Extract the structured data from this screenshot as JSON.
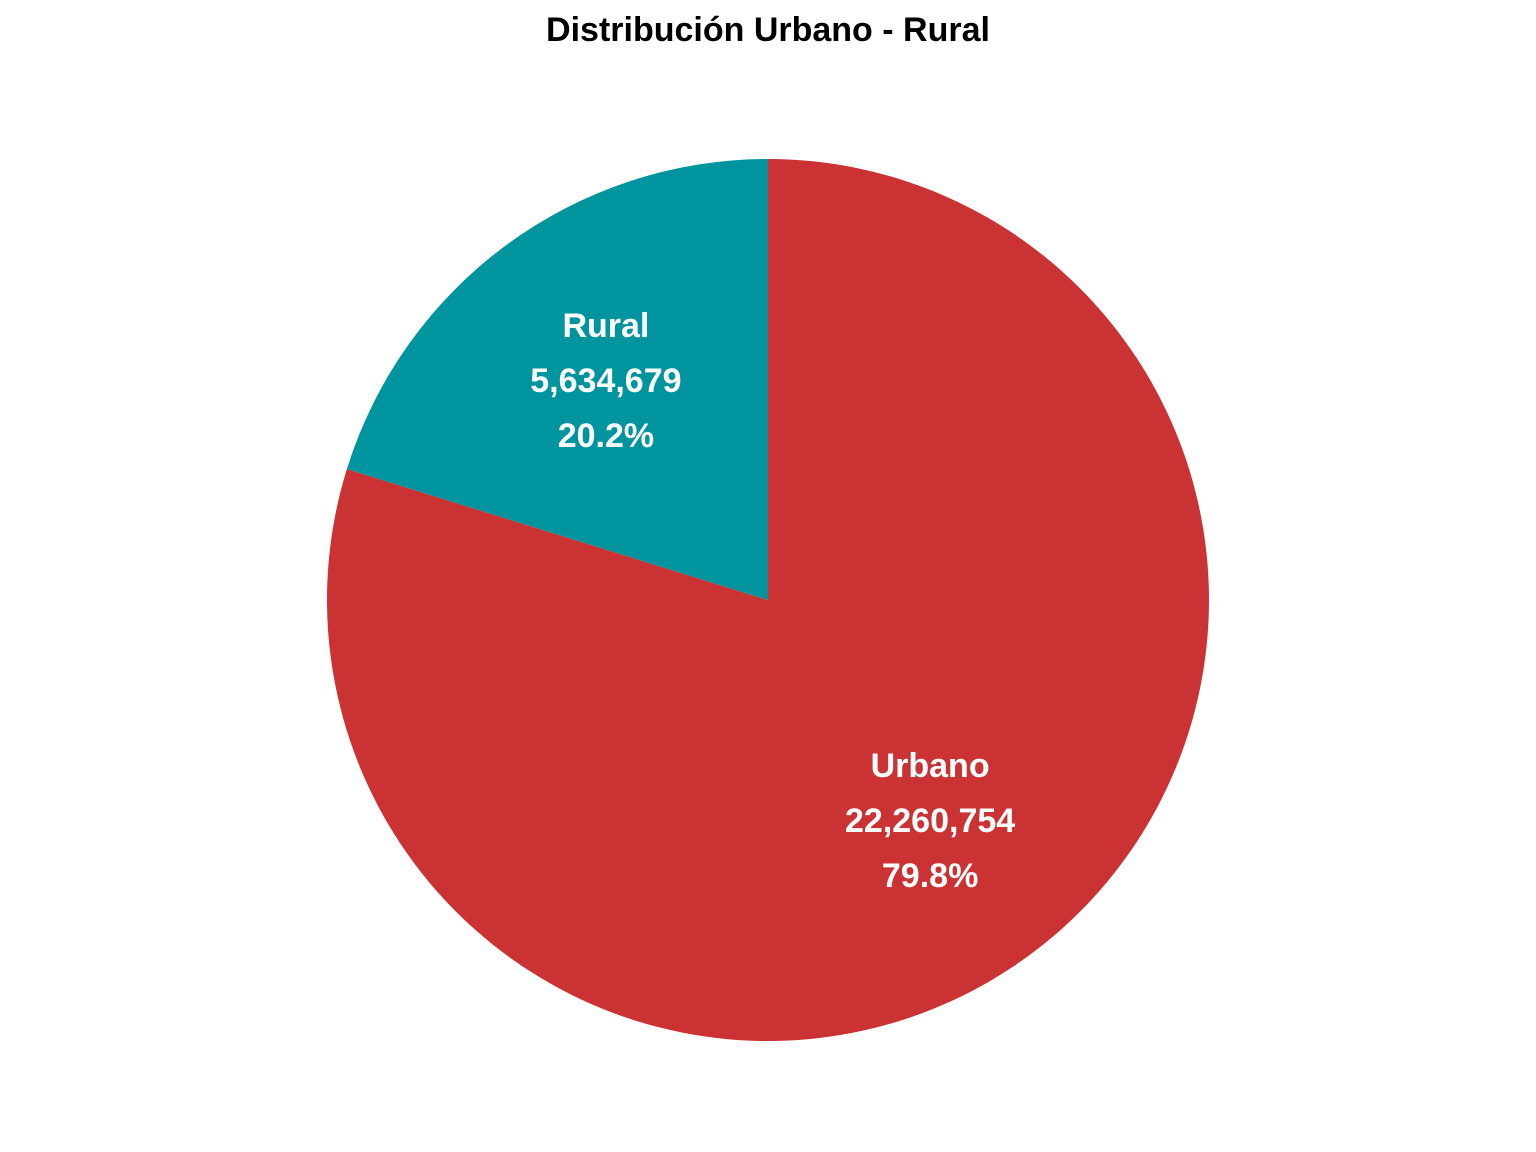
{
  "chart_data": {
    "type": "pie",
    "title": "Distribución Urbano - Rural",
    "slices": [
      {
        "name": "Urbano",
        "value": 22260754,
        "value_label": "22,260,754",
        "percent": 79.8,
        "percent_label": "79.8%",
        "color": "#CB3234"
      },
      {
        "name": "Rural",
        "value": 5634679,
        "value_label": "5,634,679",
        "percent": 20.2,
        "percent_label": "20.2%",
        "color": "#00959E"
      }
    ],
    "legend": "none"
  }
}
